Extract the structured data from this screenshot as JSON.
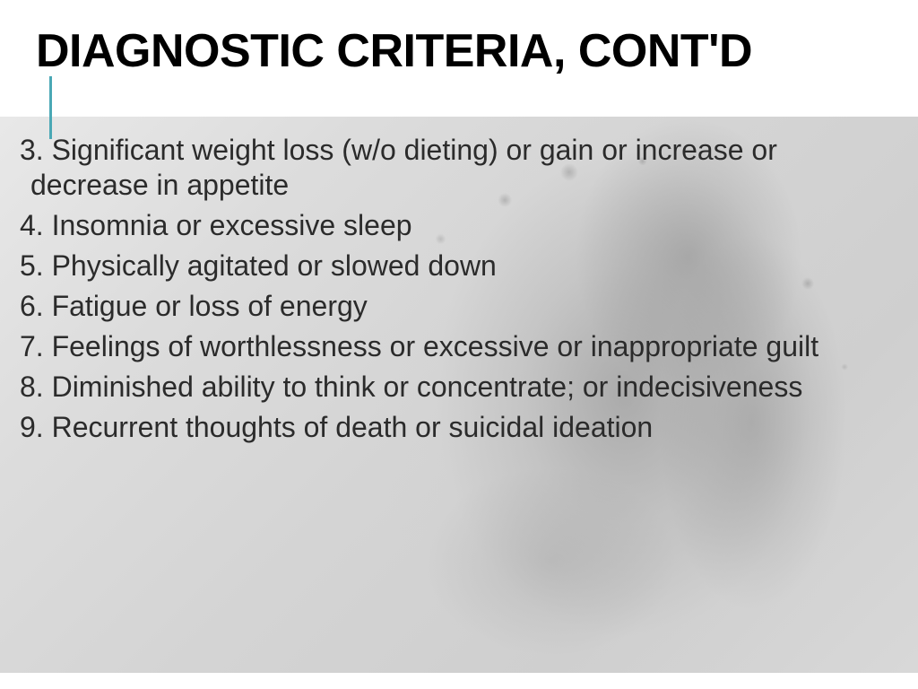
{
  "slide": {
    "title": "DIAGNOSTIC CRITERIA, CONT'D",
    "title_fontsize": 52,
    "title_color": "#000000",
    "accent_color": "#4aa8b5",
    "body_fontsize": 32,
    "body_color": "#2b2b2b",
    "background_base": "#e2e2e2",
    "items": [
      {
        "num": "3.",
        "text": "Significant weight loss (w/o dieting) or gain or increase or decrease in appetite"
      },
      {
        "num": "4.",
        "text": "Insomnia or excessive sleep"
      },
      {
        "num": "5.",
        "text": "Physically agitated or slowed down"
      },
      {
        "num": "6.",
        "text": "Fatigue or loss of energy"
      },
      {
        "num": "7.",
        "text": "Feelings of worthlessness or excessive or inappropriate guilt"
      },
      {
        "num": "8.",
        "text": "Diminished ability to think or concentrate; or indecisiveness"
      },
      {
        "num": "9.",
        "text": "Recurrent thoughts of death or suicidal ideation"
      }
    ]
  }
}
